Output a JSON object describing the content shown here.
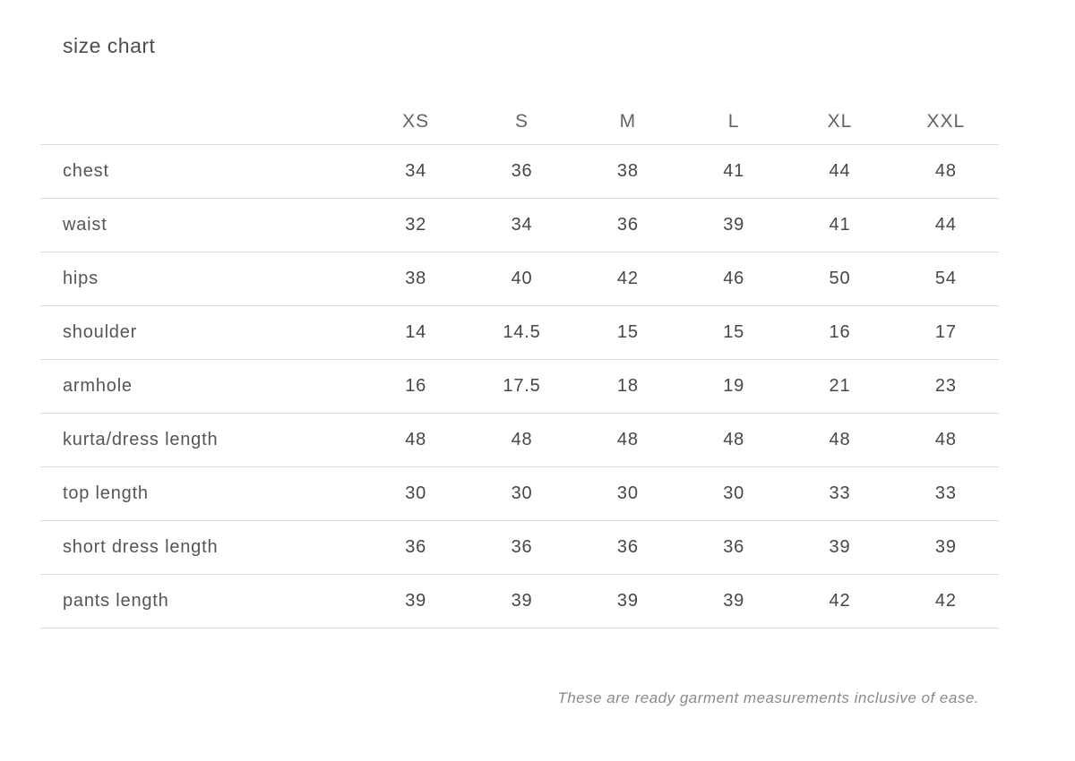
{
  "title": "size chart",
  "footnote": "These are ready garment measurements inclusive of ease.",
  "colors": {
    "background": "#ffffff",
    "title_text": "#4d4d4d",
    "header_text": "#636363",
    "cell_text": "#474747",
    "divider": "#dbdbdb",
    "footnote_text": "#8a8a8a"
  },
  "chart_data": {
    "type": "table",
    "title": "size chart",
    "columns": [
      "XS",
      "S",
      "M",
      "L",
      "XL",
      "XXL"
    ],
    "rows": [
      {
        "label": "chest",
        "values": [
          "34",
          "36",
          "38",
          "41",
          "44",
          "48"
        ]
      },
      {
        "label": "waist",
        "values": [
          "32",
          "34",
          "36",
          "39",
          "41",
          "44"
        ]
      },
      {
        "label": "hips",
        "values": [
          "38",
          "40",
          "42",
          "46",
          "50",
          "54"
        ]
      },
      {
        "label": "shoulder",
        "values": [
          "14",
          "14.5",
          "15",
          "15",
          "16",
          "17"
        ]
      },
      {
        "label": "armhole",
        "values": [
          "16",
          "17.5",
          "18",
          "19",
          "21",
          "23"
        ]
      },
      {
        "label": "kurta/dress length",
        "values": [
          "48",
          "48",
          "48",
          "48",
          "48",
          "48"
        ]
      },
      {
        "label": "top length",
        "values": [
          "30",
          "30",
          "30",
          "30",
          "33",
          "33"
        ]
      },
      {
        "label": "short dress length",
        "values": [
          "36",
          "36",
          "36",
          "36",
          "39",
          "39"
        ]
      },
      {
        "label": "pants length",
        "values": [
          "39",
          "39",
          "39",
          "39",
          "42",
          "42"
        ]
      }
    ],
    "footnote": "These are ready garment measurements inclusive of ease.",
    "layout": {
      "header_line": false,
      "row_dividers": true,
      "label_column_align": "left",
      "value_align": "center"
    }
  }
}
